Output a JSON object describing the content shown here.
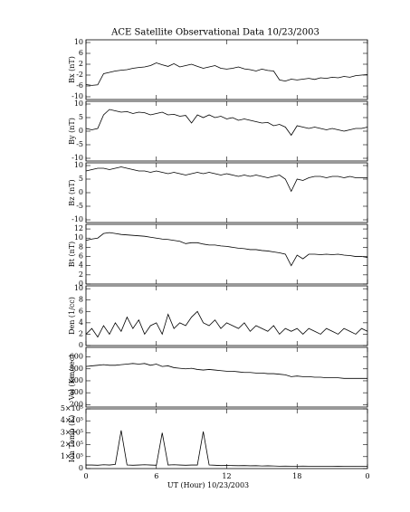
{
  "chart_data": [
    {
      "type": "line",
      "title": "ACE Satellite Observational Data   10/23/2003",
      "ylabel": "Bx (nT)",
      "color": "#000000",
      "x": [
        0,
        0.5,
        1,
        1.5,
        2,
        2.5,
        3,
        3.5,
        4,
        4.5,
        5,
        5.5,
        6,
        6.5,
        7,
        7.5,
        8,
        8.5,
        9,
        9.5,
        10,
        10.5,
        11,
        11.5,
        12,
        12.5,
        13,
        13.5,
        14,
        14.5,
        15,
        15.5,
        16,
        16.5,
        17,
        17.5,
        18,
        18.5,
        19,
        19.5,
        20,
        20.5,
        21,
        21.5,
        22,
        22.5,
        23,
        23.5,
        24
      ],
      "values": [
        -5.5,
        -5.8,
        -5.6,
        -1.5,
        -1,
        -0.5,
        -0.2,
        0,
        0.5,
        0.8,
        1,
        1.5,
        2.5,
        1.8,
        1.2,
        2.2,
        1,
        1.5,
        2,
        1.2,
        0.5,
        1,
        1.5,
        0.5,
        0.2,
        0.5,
        1,
        0.3,
        0,
        -0.5,
        0.2,
        -0.3,
        -0.5,
        -3.8,
        -4.2,
        -3.5,
        -3.8,
        -3.5,
        -3.2,
        -3.6,
        -3,
        -3.2,
        -2.8,
        -3,
        -2.5,
        -2.8,
        -2.2,
        -2,
        -1.8
      ],
      "ylim": [
        -11,
        11
      ],
      "yticks": [
        -10,
        -6,
        -2,
        2,
        6,
        10
      ]
    },
    {
      "type": "line",
      "ylabel": "By (nT)",
      "color": "#000000",
      "x": [
        0,
        0.5,
        1,
        1.5,
        2,
        2.5,
        3,
        3.5,
        4,
        4.5,
        5,
        5.5,
        6,
        6.5,
        7,
        7.5,
        8,
        8.5,
        9,
        9.5,
        10,
        10.5,
        11,
        11.5,
        12,
        12.5,
        13,
        13.5,
        14,
        14.5,
        15,
        15.5,
        16,
        16.5,
        17,
        17.5,
        18,
        18.5,
        19,
        19.5,
        20,
        20.5,
        21,
        21.5,
        22,
        22.5,
        23,
        23.5,
        24
      ],
      "values": [
        1,
        0.5,
        1,
        6,
        8,
        7.5,
        7,
        7.2,
        6.5,
        7,
        6.8,
        6,
        6.5,
        7,
        6,
        6.2,
        5.5,
        5.8,
        3,
        6,
        5,
        6,
        5,
        5.5,
        4.5,
        5,
        4,
        4.5,
        4,
        3.5,
        3,
        3.2,
        2,
        2.5,
        1.5,
        -1.5,
        2,
        1.5,
        1,
        1.5,
        1,
        0.5,
        1,
        0.5,
        0,
        0.5,
        1,
        1,
        1.5
      ],
      "ylim": [
        -11,
        11
      ],
      "yticks": [
        -10,
        -5,
        0,
        5,
        10
      ]
    },
    {
      "type": "line",
      "ylabel": "Bz (nT)",
      "color": "#000000",
      "x": [
        0,
        0.5,
        1,
        1.5,
        2,
        2.5,
        3,
        3.5,
        4,
        4.5,
        5,
        5.5,
        6,
        6.5,
        7,
        7.5,
        8,
        8.5,
        9,
        9.5,
        10,
        10.5,
        11,
        11.5,
        12,
        12.5,
        13,
        13.5,
        14,
        14.5,
        15,
        15.5,
        16,
        16.5,
        17,
        17.5,
        18,
        18.5,
        19,
        19.5,
        20,
        20.5,
        21,
        21.5,
        22,
        22.5,
        23,
        23.5,
        24
      ],
      "values": [
        8,
        8.5,
        9,
        9,
        8.5,
        9,
        9.5,
        9,
        8.5,
        8,
        8,
        7.5,
        8,
        7.5,
        7,
        7.5,
        7,
        6.5,
        7,
        7.5,
        7,
        7.5,
        7,
        6.5,
        7,
        6.5,
        6,
        6.5,
        6,
        6.5,
        6,
        5.5,
        6,
        6.5,
        5,
        0.5,
        5,
        4.5,
        5.5,
        6,
        6,
        5.5,
        6,
        6,
        5.5,
        6,
        5.5,
        5.5,
        5.5
      ],
      "ylim": [
        -11,
        11
      ],
      "yticks": [
        -10,
        -5,
        0,
        5,
        10
      ]
    },
    {
      "type": "line",
      "ylabel": "Bt (nT)",
      "color": "#000000",
      "x": [
        0,
        0.5,
        1,
        1.5,
        2,
        2.5,
        3,
        3.5,
        4,
        4.5,
        5,
        5.5,
        6,
        6.5,
        7,
        7.5,
        8,
        8.5,
        9,
        9.5,
        10,
        10.5,
        11,
        11.5,
        12,
        12.5,
        13,
        13.5,
        14,
        14.5,
        15,
        15.5,
        16,
        16.5,
        17,
        17.5,
        18,
        18.5,
        19,
        19.5,
        20,
        20.5,
        21,
        21.5,
        22,
        22.5,
        23,
        23.5,
        24
      ],
      "values": [
        9.5,
        9.8,
        10,
        11,
        11.2,
        11,
        10.8,
        10.7,
        10.6,
        10.5,
        10.4,
        10.2,
        10,
        9.8,
        9.7,
        9.5,
        9.3,
        8.8,
        9,
        9,
        8.7,
        8.5,
        8.5,
        8.3,
        8.2,
        8,
        7.8,
        7.7,
        7.5,
        7.5,
        7.3,
        7.2,
        7,
        6.8,
        6.5,
        4,
        6.3,
        5.5,
        6.5,
        6.5,
        6.4,
        6.5,
        6.4,
        6.5,
        6.3,
        6.2,
        6,
        6,
        5.8
      ],
      "ylim": [
        0,
        13
      ],
      "yticks": [
        0,
        2,
        4,
        6,
        8,
        10,
        12
      ]
    },
    {
      "type": "line",
      "ylabel": "Den (1/cc)",
      "color": "#000000",
      "x": [
        0,
        0.5,
        1,
        1.5,
        2,
        2.5,
        3,
        3.5,
        4,
        4.5,
        5,
        5.5,
        6,
        6.5,
        7,
        7.5,
        8,
        8.5,
        9,
        9.5,
        10,
        10.5,
        11,
        11.5,
        12,
        12.5,
        13,
        13.5,
        14,
        14.5,
        15,
        15.5,
        16,
        16.5,
        17,
        17.5,
        18,
        18.5,
        19,
        19.5,
        20,
        20.5,
        21,
        21.5,
        22,
        22.5,
        23,
        23.5,
        24
      ],
      "values": [
        2,
        3,
        1.5,
        3.5,
        2,
        4,
        2.5,
        5,
        3,
        4.5,
        2,
        3.5,
        4,
        2,
        5.5,
        3,
        4,
        3.5,
        5,
        6,
        4,
        3.5,
        4.5,
        3,
        4,
        3.5,
        3,
        4,
        2.5,
        3.5,
        3,
        2.5,
        3.5,
        2,
        3,
        2.5,
        3,
        2,
        3,
        2.5,
        2,
        3,
        2.5,
        2,
        3,
        2.5,
        2,
        3,
        2.5
      ],
      "ylim": [
        0,
        10.5
      ],
      "yticks": [
        0,
        2,
        4,
        6,
        8,
        10
      ]
    },
    {
      "type": "line",
      "ylabel": "Vel (Km/sec)",
      "color": "#000000",
      "x": [
        0,
        0.5,
        1,
        1.5,
        2,
        2.5,
        3,
        3.5,
        4,
        4.5,
        5,
        5.5,
        6,
        6.5,
        7,
        7.5,
        8,
        8.5,
        9,
        9.5,
        10,
        10.5,
        11,
        11.5,
        12,
        12.5,
        13,
        13.5,
        14,
        14.5,
        15,
        15.5,
        16,
        16.5,
        17,
        17.5,
        18,
        18.5,
        19,
        19.5,
        20,
        20.5,
        21,
        21.5,
        22,
        22.5,
        23,
        23.5,
        24
      ],
      "values": [
        520,
        525,
        530,
        535,
        530,
        530,
        535,
        540,
        545,
        540,
        545,
        530,
        540,
        520,
        525,
        510,
        505,
        500,
        505,
        495,
        490,
        495,
        490,
        485,
        480,
        480,
        475,
        470,
        470,
        465,
        465,
        460,
        460,
        455,
        450,
        435,
        440,
        435,
        435,
        430,
        430,
        425,
        425,
        425,
        420,
        420,
        420,
        420,
        420
      ],
      "ylim": [
        180,
        680
      ],
      "yticks": [
        200,
        300,
        400,
        500,
        600
      ]
    },
    {
      "type": "line",
      "ylabel": "Ion Temp (K)",
      "xlabel": "UT (Hour)  10/23/2003",
      "color": "#000000",
      "x": [
        0,
        0.5,
        1,
        1.5,
        2,
        2.5,
        3,
        3.5,
        4,
        4.5,
        5,
        5.5,
        6,
        6.5,
        7,
        7.5,
        8,
        8.5,
        9,
        9.5,
        10,
        10.5,
        11,
        11.5,
        12,
        12.5,
        13,
        13.5,
        14,
        14.5,
        15,
        15.5,
        16,
        16.5,
        17,
        17.5,
        18,
        18.5,
        19,
        19.5,
        20,
        20.5,
        21,
        21.5,
        22,
        22.5,
        23,
        23.5,
        24
      ],
      "values": [
        30000,
        30000,
        28000,
        32000,
        30000,
        35000,
        320000,
        30000,
        28000,
        30000,
        32000,
        30000,
        28000,
        300000,
        30000,
        32000,
        30000,
        28000,
        30000,
        30000,
        310000,
        30000,
        28000,
        25000,
        26000,
        25000,
        24000,
        25000,
        23000,
        24000,
        22000,
        23000,
        22000,
        20000,
        21000,
        20000,
        20000,
        21000,
        20000,
        19000,
        20000,
        20000,
        19000,
        20000,
        19000,
        19000,
        20000,
        20000,
        19000
      ],
      "ylim": [
        0,
        500000
      ],
      "yticks": [
        0,
        {
          "value": 100000,
          "label": "1×10⁵"
        },
        {
          "value": 200000,
          "label": "2×10⁵"
        },
        {
          "value": 300000,
          "label": "3×10⁵"
        },
        {
          "value": 400000,
          "label": "4×10⁵"
        },
        {
          "value": 500000,
          "label": "5×10⁵"
        }
      ],
      "xlim": [
        0,
        24
      ],
      "xticks": [
        0,
        6,
        12,
        18,
        {
          "value": 24,
          "label": "0"
        }
      ]
    }
  ]
}
